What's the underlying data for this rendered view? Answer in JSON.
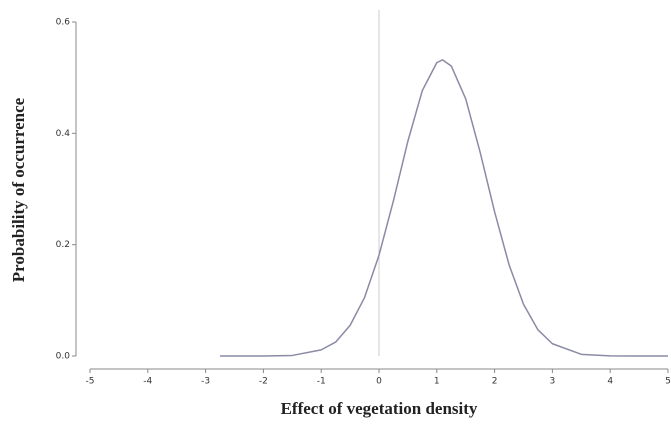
{
  "chart_data": {
    "type": "line",
    "xlabel": "Effect of vegetation density",
    "ylabel": "Probability of occurrence",
    "x": [
      -2.75,
      -2.5,
      -2,
      -1.5,
      -1,
      -0.75,
      -0.5,
      -0.25,
      0,
      0.25,
      0.5,
      0.75,
      1,
      1.1,
      1.25,
      1.5,
      1.75,
      2,
      2.25,
      2.5,
      2.75,
      3,
      3.5,
      4,
      4.5,
      5
    ],
    "series": [
      {
        "color": "#8a8aa6",
        "values": [
          0,
          0,
          0.0001,
          0.001,
          0.011,
          0.025,
          0.055,
          0.105,
          0.181,
          0.279,
          0.386,
          0.477,
          0.527,
          0.532,
          0.521,
          0.462,
          0.366,
          0.259,
          0.164,
          0.093,
          0.047,
          0.022,
          0.003,
          0.0003,
          0,
          0
        ]
      }
    ],
    "xlim": [
      -5,
      5
    ],
    "xticks": [
      -5,
      -4,
      -3,
      -2,
      -1,
      0,
      1,
      2,
      3,
      4,
      5
    ],
    "ylim": [
      0,
      0.6
    ],
    "yticks": [
      {
        "value": 0,
        "label": "0.0"
      },
      0.2,
      0.4,
      0.6
    ],
    "vline": 0
  }
}
